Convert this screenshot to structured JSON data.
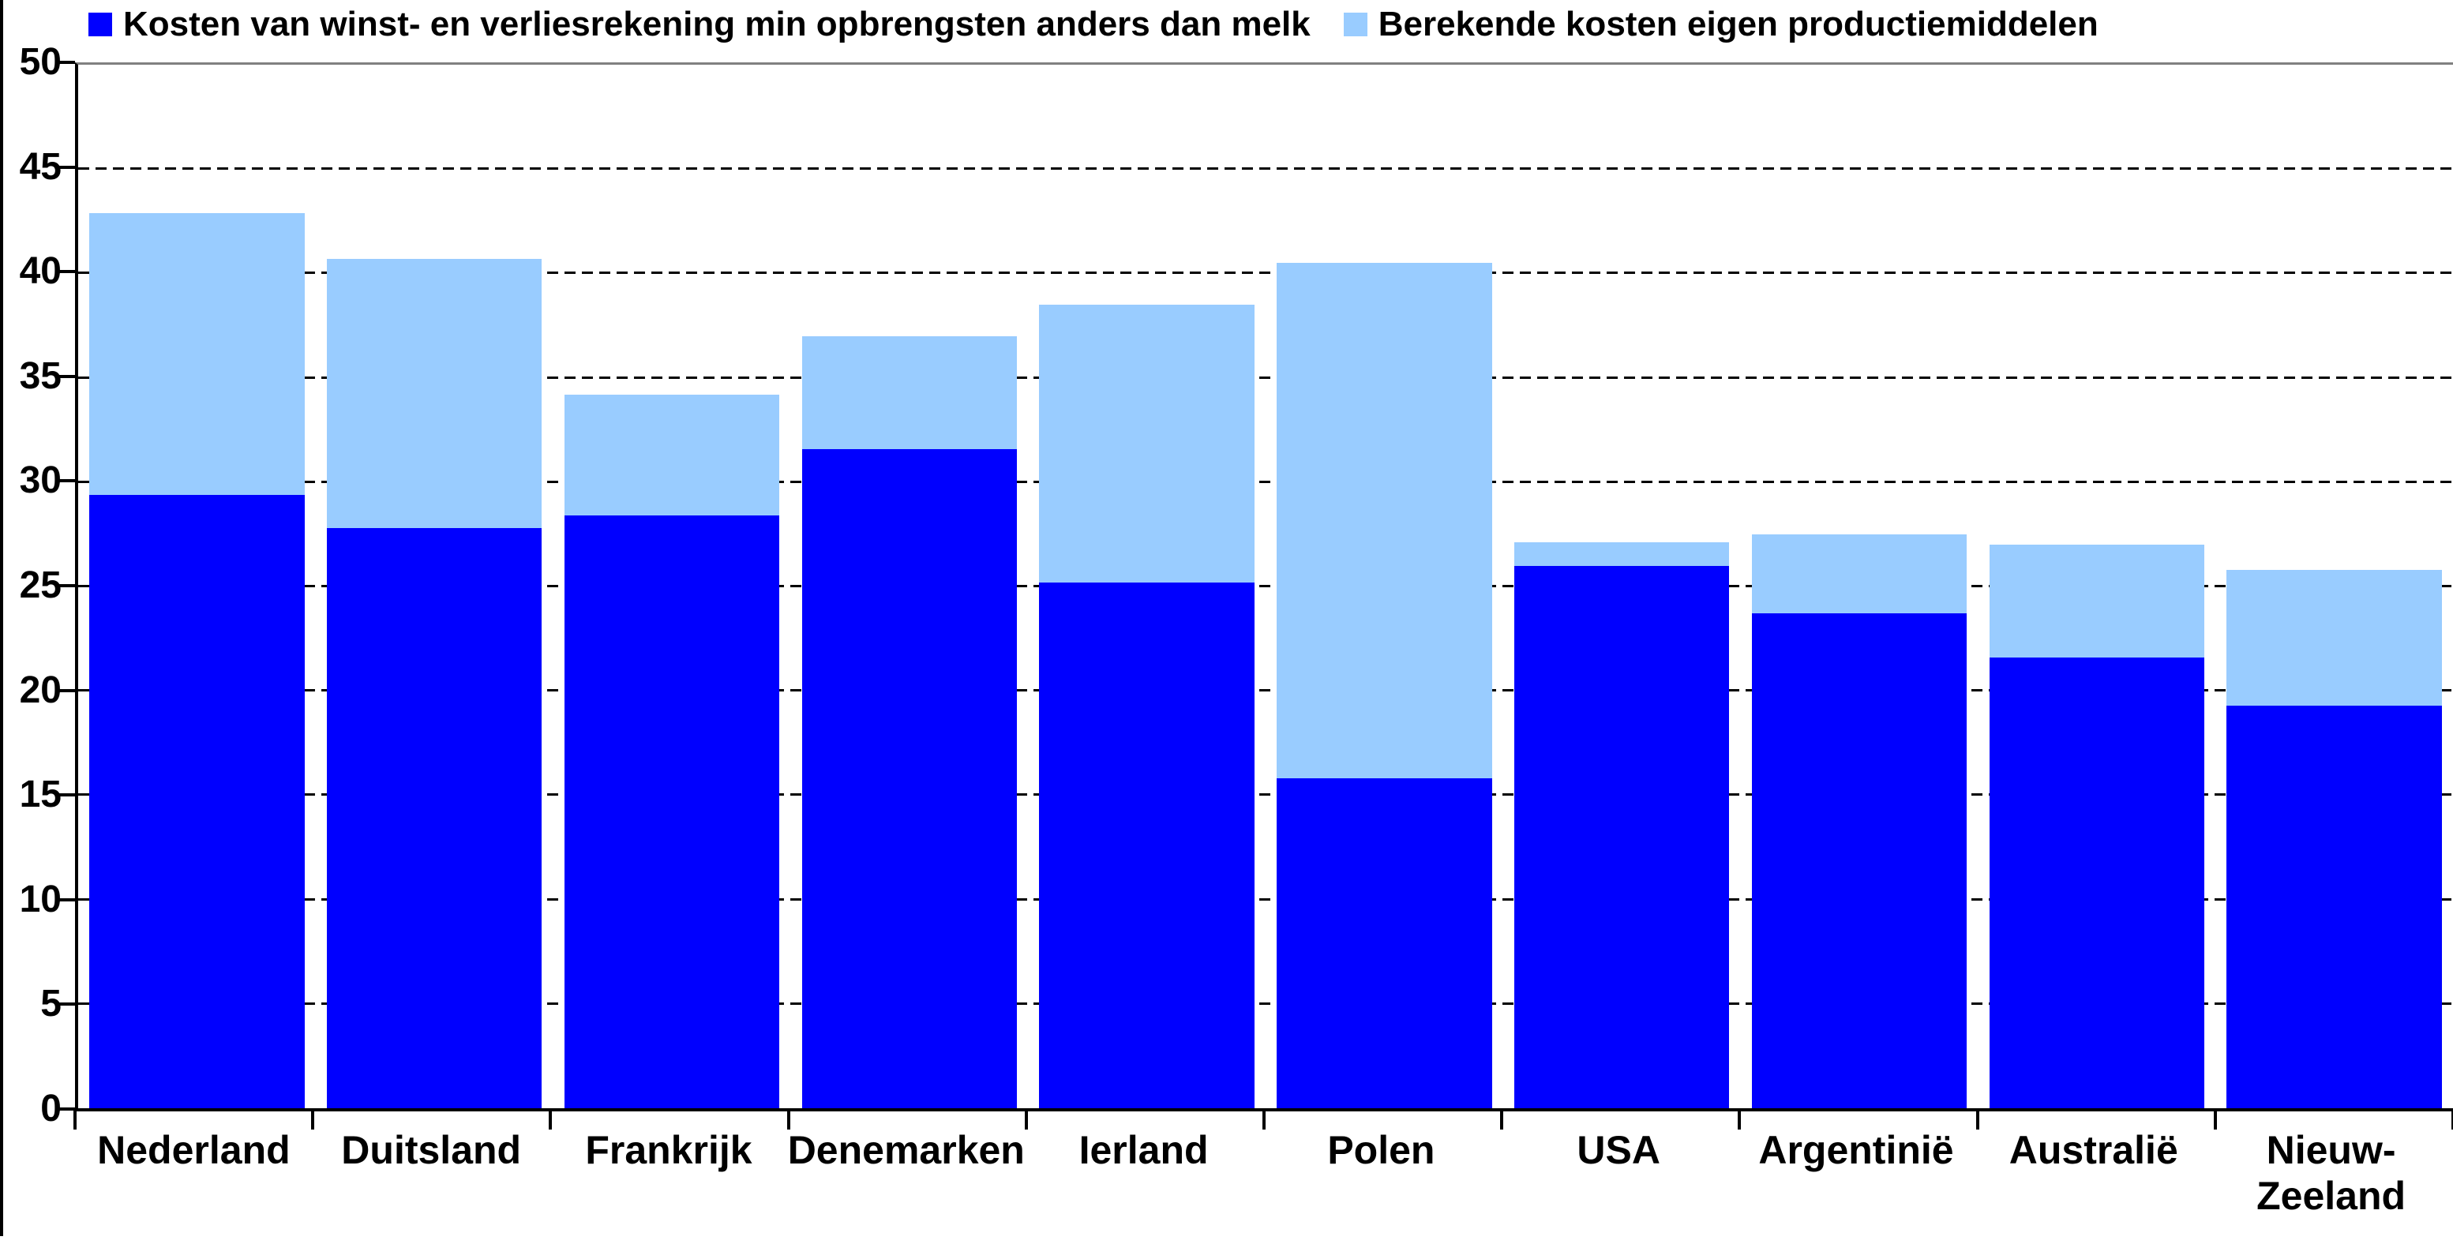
{
  "chart_data": {
    "type": "bar",
    "stacked": true,
    "title": "",
    "xlabel": "",
    "ylabel": "",
    "ylim": [
      0,
      50
    ],
    "ytick_step": 5,
    "grid": "horizontal-dashed",
    "legend_position": "top",
    "background_color": "#FFFFFF",
    "axis_color": "#000000",
    "top_border_color": "#808080",
    "categories": [
      "Nederland",
      "Duitsland",
      "Frankrijk",
      "Denemarken",
      "Ierland",
      "Polen",
      "USA",
      "Argentinië",
      "Australië",
      "Nieuw-\nZeeland"
    ],
    "series": [
      {
        "name": "Kosten van winst- en verliesrekening min opbrengsten anders dan melk",
        "color": "#0000FF",
        "values": [
          29.4,
          27.8,
          28.4,
          31.6,
          25.2,
          15.8,
          26.0,
          23.7,
          21.6,
          19.3
        ]
      },
      {
        "name": "Berekende kosten eigen productiemiddelen",
        "color": "#99CCFF",
        "values": [
          13.5,
          12.9,
          5.8,
          5.4,
          13.3,
          24.7,
          1.1,
          3.8,
          5.4,
          6.5
        ]
      }
    ],
    "totals": [
      42.9,
      40.7,
      34.2,
      37.0,
      38.5,
      40.5,
      27.1,
      27.5,
      27.0,
      25.8
    ],
    "ytick_labels": [
      "0",
      "5",
      "10",
      "15",
      "20",
      "25",
      "30",
      "35",
      "40",
      "45",
      "50"
    ]
  }
}
